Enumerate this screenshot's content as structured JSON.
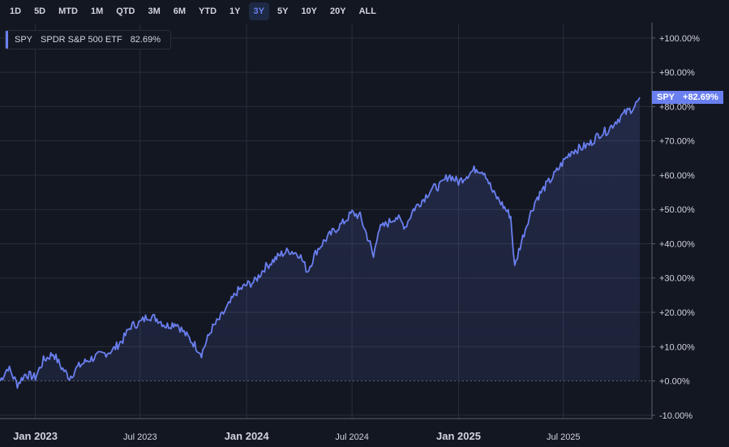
{
  "toolbar": {
    "ranges": [
      "1D",
      "5D",
      "MTD",
      "1M",
      "QTD",
      "3M",
      "6M",
      "YTD",
      "1Y",
      "3Y",
      "5Y",
      "10Y",
      "20Y",
      "ALL"
    ],
    "active": "3Y"
  },
  "legend": {
    "symbol": "SPY",
    "name": "SPDR S&P 500 ETF",
    "value": "82.69%"
  },
  "badge": {
    "symbol": "SPY",
    "value": "+82.69%"
  },
  "colors": {
    "background": "#131722",
    "line": "#6a7ff0",
    "grid": "#2a2e39"
  },
  "chart_data": {
    "type": "area",
    "series": [
      {
        "name": "SPY",
        "x": [
          "2022-11-01",
          "2022-11-15",
          "2022-12-01",
          "2022-12-15",
          "2023-01-01",
          "2023-01-15",
          "2023-02-01",
          "2023-02-15",
          "2023-03-01",
          "2023-03-15",
          "2023-04-01",
          "2023-04-15",
          "2023-05-01",
          "2023-05-15",
          "2023-06-01",
          "2023-06-15",
          "2023-07-01",
          "2023-07-15",
          "2023-08-01",
          "2023-08-15",
          "2023-09-01",
          "2023-09-15",
          "2023-10-01",
          "2023-10-15",
          "2023-11-01",
          "2023-11-15",
          "2023-12-01",
          "2023-12-15",
          "2024-01-01",
          "2024-01-15",
          "2024-02-01",
          "2024-02-15",
          "2024-03-01",
          "2024-03-15",
          "2024-04-01",
          "2024-04-15",
          "2024-05-01",
          "2024-05-15",
          "2024-06-01",
          "2024-06-15",
          "2024-07-01",
          "2024-07-15",
          "2024-08-01",
          "2024-08-07",
          "2024-08-15",
          "2024-09-01",
          "2024-09-15",
          "2024-10-01",
          "2024-10-15",
          "2024-11-01",
          "2024-11-15",
          "2024-12-01",
          "2024-12-15",
          "2025-01-01",
          "2025-01-15",
          "2025-02-01",
          "2025-02-15",
          "2025-03-01",
          "2025-03-15",
          "2025-04-01",
          "2025-04-08",
          "2025-04-15",
          "2025-05-01",
          "2025-05-15",
          "2025-06-01",
          "2025-06-15",
          "2025-07-01",
          "2025-07-15",
          "2025-08-01",
          "2025-08-15",
          "2025-09-01",
          "2025-09-15",
          "2025-10-01",
          "2025-10-15",
          "2025-11-01",
          "2025-11-10"
        ],
        "values": [
          0,
          4,
          -1,
          2,
          1,
          6,
          8,
          4,
          1,
          4,
          6,
          7,
          8,
          9,
          12,
          16,
          17,
          19,
          18,
          16,
          17,
          14,
          11,
          8,
          15,
          18,
          22,
          26,
          28,
          29,
          33,
          35,
          37,
          38,
          37,
          32,
          38,
          41,
          44,
          46,
          49,
          48,
          40,
          36,
          44,
          46,
          48,
          45,
          50,
          53,
          56,
          57,
          60,
          58,
          60,
          62,
          61,
          55,
          52,
          48,
          33,
          38,
          47,
          53,
          57,
          60,
          64,
          67,
          68,
          69,
          72,
          73,
          76,
          78,
          80,
          82.69
        ]
      }
    ],
    "yaxis": {
      "ticks": [
        "-10.00%",
        "+0.00%",
        "+10.00%",
        "+20.00%",
        "+30.00%",
        "+40.00%",
        "+50.00%",
        "+60.00%",
        "+70.00%",
        "+80.00%",
        "+90.00%",
        "+100.00%"
      ],
      "values": [
        -10,
        0,
        10,
        20,
        30,
        40,
        50,
        60,
        70,
        80,
        90,
        100
      ],
      "range": [
        -11,
        104
      ]
    },
    "xaxis": {
      "ticks": [
        {
          "label": "Jan 2023",
          "date": "2023-01-01",
          "major": true
        },
        {
          "label": "Jul 2023",
          "date": "2023-07-01",
          "major": false
        },
        {
          "label": "Jan 2024",
          "date": "2024-01-01",
          "major": true
        },
        {
          "label": "Jul 2024",
          "date": "2024-07-01",
          "major": false
        },
        {
          "label": "Jan 2025",
          "date": "2025-01-01",
          "major": true
        },
        {
          "label": "Jul 2025",
          "date": "2025-07-01",
          "major": false
        }
      ],
      "range": [
        "2022-11-01",
        "2025-12-01"
      ]
    },
    "grid": true,
    "legend": "top-left"
  }
}
